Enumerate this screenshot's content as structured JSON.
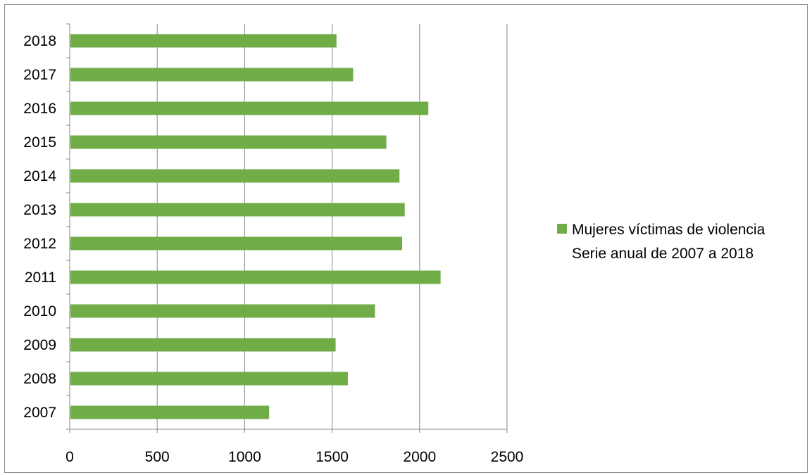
{
  "chart_data": {
    "type": "bar",
    "orientation": "horizontal",
    "categories": [
      "2007",
      "2008",
      "2009",
      "2010",
      "2011",
      "2012",
      "2013",
      "2014",
      "2015",
      "2016",
      "2017",
      "2018"
    ],
    "series": [
      {
        "name_lines": [
          "Mujeres víctimas de violencia",
          "Serie anual de 2007 a 2018"
        ],
        "values": [
          1140,
          1590,
          1520,
          1745,
          2120,
          1900,
          1915,
          1885,
          1810,
          2050,
          1620,
          1525
        ]
      }
    ],
    "xlim": [
      0,
      2500
    ],
    "x_ticks": [
      "0",
      "500",
      "1000",
      "1500",
      "2000",
      "2500"
    ],
    "grid": "vertical",
    "legend_position": "right",
    "bar_color": "#70ad47"
  }
}
